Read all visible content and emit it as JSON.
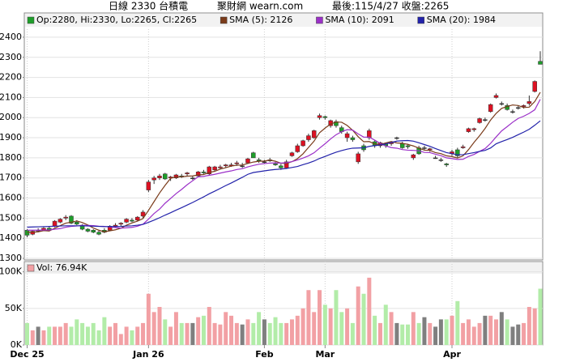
{
  "header": {
    "title": "日線 2330 台積電",
    "site": "聚財網 wearn.com",
    "last": "最後:115/4/27 收盤:2265"
  },
  "chart_data": [
    {
      "type": "candlestick",
      "categories": [
        "Dec 25",
        null,
        null,
        null,
        null,
        null,
        null,
        null,
        null,
        null,
        null,
        null,
        null,
        null,
        null,
        null,
        null,
        null,
        null,
        null,
        null,
        null,
        "Jan 26",
        null,
        null,
        null,
        null,
        null,
        null,
        null,
        null,
        null,
        null,
        null,
        null,
        null,
        null,
        null,
        null,
        null,
        null,
        null,
        null,
        "Feb",
        null,
        null,
        null,
        null,
        null,
        null,
        null,
        null,
        null,
        null,
        "Mar",
        null,
        null,
        null,
        null,
        null,
        null,
        null,
        null,
        null,
        null,
        null,
        null,
        null,
        null,
        null,
        null,
        null,
        null,
        null,
        null,
        null,
        null,
        "Apr",
        null,
        null,
        null,
        null,
        null,
        null,
        null,
        null,
        null,
        null,
        null,
        null,
        null,
        null,
        null,
        null
      ],
      "up_color": "#dd1122",
      "down_color": "#1e9e2a",
      "series": [
        {
          "name": "Op:2280, Hi:2330, Lo:2265, Cl:2265",
          "color": "#1e9e2a",
          "open": [
            1440,
            1420,
            1440,
            1440,
            1450,
            1460,
            1480,
            1500,
            1510,
            1480,
            1465,
            1445,
            1440,
            1430,
            1440,
            1440,
            1460,
            1470,
            1480,
            1490,
            1490,
            1510,
            1640,
            1690,
            1700,
            1720,
            1700,
            1700,
            1710,
            1720,
            1700,
            1710,
            1730,
            1720,
            1740,
            1750,
            1760,
            1760,
            1770,
            1760,
            1775,
            1825,
            1790,
            1780,
            1790,
            1770,
            1760,
            1750,
            1810,
            1830,
            1860,
            1890,
            1900,
            2000,
            2005,
            1960,
            1980,
            1950,
            1900,
            1900,
            1780,
            1860,
            1900,
            1880,
            1860,
            1870,
            1870,
            1900,
            1870,
            1860,
            1800,
            1850,
            1850,
            1840,
            1800,
            1790,
            1770,
            1820,
            1840,
            1850,
            1930,
            1940,
            1975,
            1990,
            2030,
            2100,
            2070,
            2060,
            2030,
            2050,
            2055,
            2070,
            2130,
            2280
          ],
          "high": [
            1445,
            1440,
            1450,
            1455,
            1460,
            1490,
            1500,
            1515,
            1515,
            1490,
            1470,
            1450,
            1445,
            1440,
            1450,
            1465,
            1475,
            1480,
            1500,
            1500,
            1510,
            1540,
            1690,
            1710,
            1720,
            1725,
            1710,
            1720,
            1720,
            1730,
            1710,
            1735,
            1740,
            1760,
            1760,
            1765,
            1770,
            1775,
            1785,
            1775,
            1800,
            1830,
            1800,
            1790,
            1800,
            1780,
            1770,
            1790,
            1830,
            1870,
            1890,
            1920,
            1940,
            2020,
            2010,
            1990,
            1990,
            1960,
            1930,
            1910,
            1830,
            1870,
            1945,
            1890,
            1880,
            1875,
            1880,
            1905,
            1880,
            1870,
            1820,
            1860,
            1860,
            1850,
            1810,
            1800,
            1775,
            1840,
            1850,
            1865,
            1950,
            1950,
            2000,
            2000,
            2070,
            2120,
            2080,
            2070,
            2040,
            2060,
            2065,
            2110,
            2185,
            2330
          ],
          "low": [
            1405,
            1415,
            1430,
            1435,
            1435,
            1455,
            1475,
            1490,
            1470,
            1465,
            1440,
            1430,
            1425,
            1415,
            1425,
            1435,
            1455,
            1460,
            1475,
            1480,
            1485,
            1500,
            1630,
            1670,
            1690,
            1690,
            1685,
            1695,
            1700,
            1710,
            1690,
            1705,
            1720,
            1715,
            1735,
            1745,
            1750,
            1755,
            1760,
            1750,
            1770,
            1800,
            1775,
            1770,
            1780,
            1760,
            1740,
            1745,
            1805,
            1825,
            1855,
            1880,
            1895,
            1990,
            1990,
            1950,
            1950,
            1920,
            1880,
            1880,
            1770,
            1830,
            1890,
            1850,
            1850,
            1850,
            1860,
            1890,
            1845,
            1845,
            1790,
            1815,
            1840,
            1830,
            1795,
            1780,
            1755,
            1810,
            1800,
            1845,
            1925,
            1930,
            1970,
            1980,
            2025,
            2095,
            2060,
            2035,
            2020,
            2040,
            2045,
            2060,
            2125,
            2265
          ],
          "close": [
            1415,
            1435,
            1440,
            1450,
            1440,
            1485,
            1495,
            1505,
            1475,
            1470,
            1445,
            1435,
            1430,
            1420,
            1430,
            1460,
            1465,
            1475,
            1495,
            1485,
            1505,
            1530,
            1680,
            1700,
            1710,
            1695,
            1705,
            1715,
            1705,
            1725,
            1700,
            1730,
            1725,
            1755,
            1755,
            1755,
            1765,
            1765,
            1775,
            1760,
            1795,
            1800,
            1785,
            1780,
            1785,
            1765,
            1750,
            1780,
            1825,
            1860,
            1885,
            1910,
            1935,
            2010,
            2000,
            1985,
            1960,
            1930,
            1920,
            1890,
            1820,
            1840,
            1935,
            1860,
            1875,
            1860,
            1875,
            1900,
            1850,
            1855,
            1815,
            1820,
            1850,
            1845,
            1800,
            1790,
            1765,
            1830,
            1810,
            1855,
            1945,
            1945,
            1995,
            1990,
            2065,
            2110,
            2070,
            2040,
            2030,
            2050,
            2060,
            2080,
            2180,
            2265
          ]
        },
        {
          "name": "SMA (5): 2126",
          "color": "#7a3b1a",
          "values": [
            1430,
            1430,
            1432,
            1438,
            1436,
            1450,
            1463,
            1475,
            1480,
            1486,
            1478,
            1466,
            1451,
            1440,
            1432,
            1437,
            1442,
            1450,
            1465,
            1476,
            1485,
            1498,
            1539,
            1582,
            1625,
            1663,
            1698,
            1705,
            1706,
            1709,
            1710,
            1715,
            1717,
            1727,
            1733,
            1744,
            1751,
            1759,
            1763,
            1764,
            1772,
            1779,
            1783,
            1784,
            1789,
            1783,
            1773,
            1772,
            1781,
            1796,
            1820,
            1852,
            1883,
            1925,
            1948,
            1968,
            1978,
            1977,
            1961,
            1937,
            1905,
            1880,
            1881,
            1869,
            1866,
            1874,
            1881,
            1874,
            1872,
            1867,
            1859,
            1848,
            1838,
            1837,
            1826,
            1821,
            1810,
            1806,
            1799,
            1810,
            1841,
            1877,
            1910,
            1946,
            1988,
            2021,
            2046,
            2055,
            2063,
            2060,
            2050,
            2052,
            2080,
            2126
          ]
        },
        {
          "name": "SMA (10): 2091",
          "color": "#9b30c8",
          "values": [
            1440,
            1440,
            1440,
            1441,
            1441,
            1445,
            1448,
            1455,
            1459,
            1461,
            1464,
            1464,
            1463,
            1460,
            1459,
            1456,
            1453,
            1450,
            1452,
            1454,
            1460,
            1470,
            1495,
            1523,
            1545,
            1574,
            1598,
            1622,
            1643,
            1666,
            1686,
            1706,
            1708,
            1713,
            1718,
            1724,
            1730,
            1735,
            1742,
            1746,
            1755,
            1762,
            1768,
            1771,
            1774,
            1775,
            1774,
            1776,
            1781,
            1789,
            1799,
            1810,
            1825,
            1848,
            1870,
            1894,
            1915,
            1930,
            1940,
            1938,
            1919,
            1903,
            1903,
            1888,
            1872,
            1859,
            1851,
            1848,
            1841,
            1838,
            1837,
            1835,
            1827,
            1826,
            1818,
            1811,
            1800,
            1796,
            1792,
            1793,
            1807,
            1817,
            1832,
            1846,
            1872,
            1904,
            1934,
            1955,
            1977,
            1996,
            2007,
            2021,
            2039,
            2091
          ]
        },
        {
          "name": "SMA (20): 1984",
          "color": "#2222aa",
          "values": [
            1455,
            1456,
            1457,
            1458,
            1459,
            1460,
            1461,
            1462,
            1462,
            1462,
            1462,
            1461,
            1460,
            1459,
            1458,
            1458,
            1458,
            1459,
            1461,
            1462,
            1465,
            1469,
            1479,
            1490,
            1502,
            1515,
            1527,
            1540,
            1552,
            1565,
            1578,
            1592,
            1606,
            1621,
            1634,
            1648,
            1662,
            1675,
            1689,
            1703,
            1718,
            1727,
            1731,
            1735,
            1739,
            1742,
            1744,
            1747,
            1752,
            1757,
            1766,
            1774,
            1784,
            1797,
            1807,
            1818,
            1828,
            1836,
            1843,
            1848,
            1849,
            1850,
            1857,
            1861,
            1864,
            1869,
            1876,
            1883,
            1885,
            1886,
            1883,
            1875,
            1866,
            1857,
            1846,
            1836,
            1826,
            1821,
            1815,
            1816,
            1821,
            1826,
            1832,
            1837,
            1849,
            1870,
            1881,
            1891,
            1902,
            1915,
            1928,
            1942,
            1962,
            1984
          ]
        }
      ],
      "ylim": [
        1292,
        2440
      ],
      "yticks": [
        1300,
        1400,
        1500,
        1600,
        1700,
        1800,
        1900,
        2000,
        2100,
        2200,
        2300,
        2400
      ],
      "grid": true
    },
    {
      "type": "bar",
      "title": "Vol: 76.94K",
      "up_color": "#f2a0a4",
      "down_color": "#b2eca8",
      "flat_color": "#7f7f7f",
      "values": [
        30,
        20,
        25,
        20,
        25,
        25,
        25,
        30,
        25,
        35,
        30,
        25,
        30,
        20,
        38,
        25,
        30,
        15,
        25,
        20,
        25,
        30,
        70,
        45,
        52,
        35,
        25,
        45,
        30,
        30,
        30,
        38,
        40,
        52,
        30,
        28,
        45,
        40,
        30,
        28,
        35,
        30,
        45,
        35,
        30,
        38,
        30,
        30,
        35,
        40,
        50,
        75,
        45,
        75,
        55,
        50,
        75,
        45,
        50,
        30,
        80,
        70,
        92,
        40,
        30,
        55,
        45,
        30,
        28,
        28,
        45,
        30,
        38,
        30,
        25,
        35,
        35,
        40,
        60,
        30,
        35,
        25,
        30,
        40,
        40,
        35,
        45,
        35,
        25,
        28,
        30,
        52,
        50,
        76.94
      ],
      "ylim": [
        0,
        114
      ],
      "yticks": [
        {
          "value": 0,
          "label": "0K"
        },
        {
          "value": 50,
          "label": "50K"
        },
        {
          "value": 100,
          "label": "100K"
        }
      ],
      "grid": true
    }
  ]
}
